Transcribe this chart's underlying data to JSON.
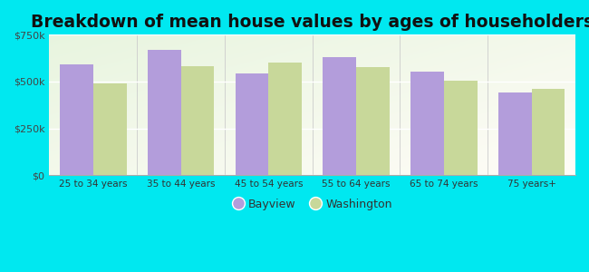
{
  "title": "Breakdown of mean house values by ages of householders",
  "categories": [
    "25 to 34 years",
    "35 to 44 years",
    "45 to 54 years",
    "55 to 64 years",
    "65 to 74 years",
    "75 years+"
  ],
  "bayview": [
    590000,
    670000,
    545000,
    630000,
    555000,
    440000
  ],
  "washington": [
    490000,
    580000,
    600000,
    575000,
    505000,
    460000
  ],
  "bayview_color": "#b39ddb",
  "washington_color": "#c8d89a",
  "background_color": "#00e8f0",
  "ylim": [
    0,
    750000
  ],
  "yticks": [
    0,
    250000,
    500000,
    750000
  ],
  "ytick_labels": [
    "$0",
    "$250k",
    "$500k",
    "$750k"
  ],
  "legend_bayview": "Bayview",
  "legend_washington": "Washington",
  "bar_width": 0.38,
  "title_fontsize": 13.5
}
